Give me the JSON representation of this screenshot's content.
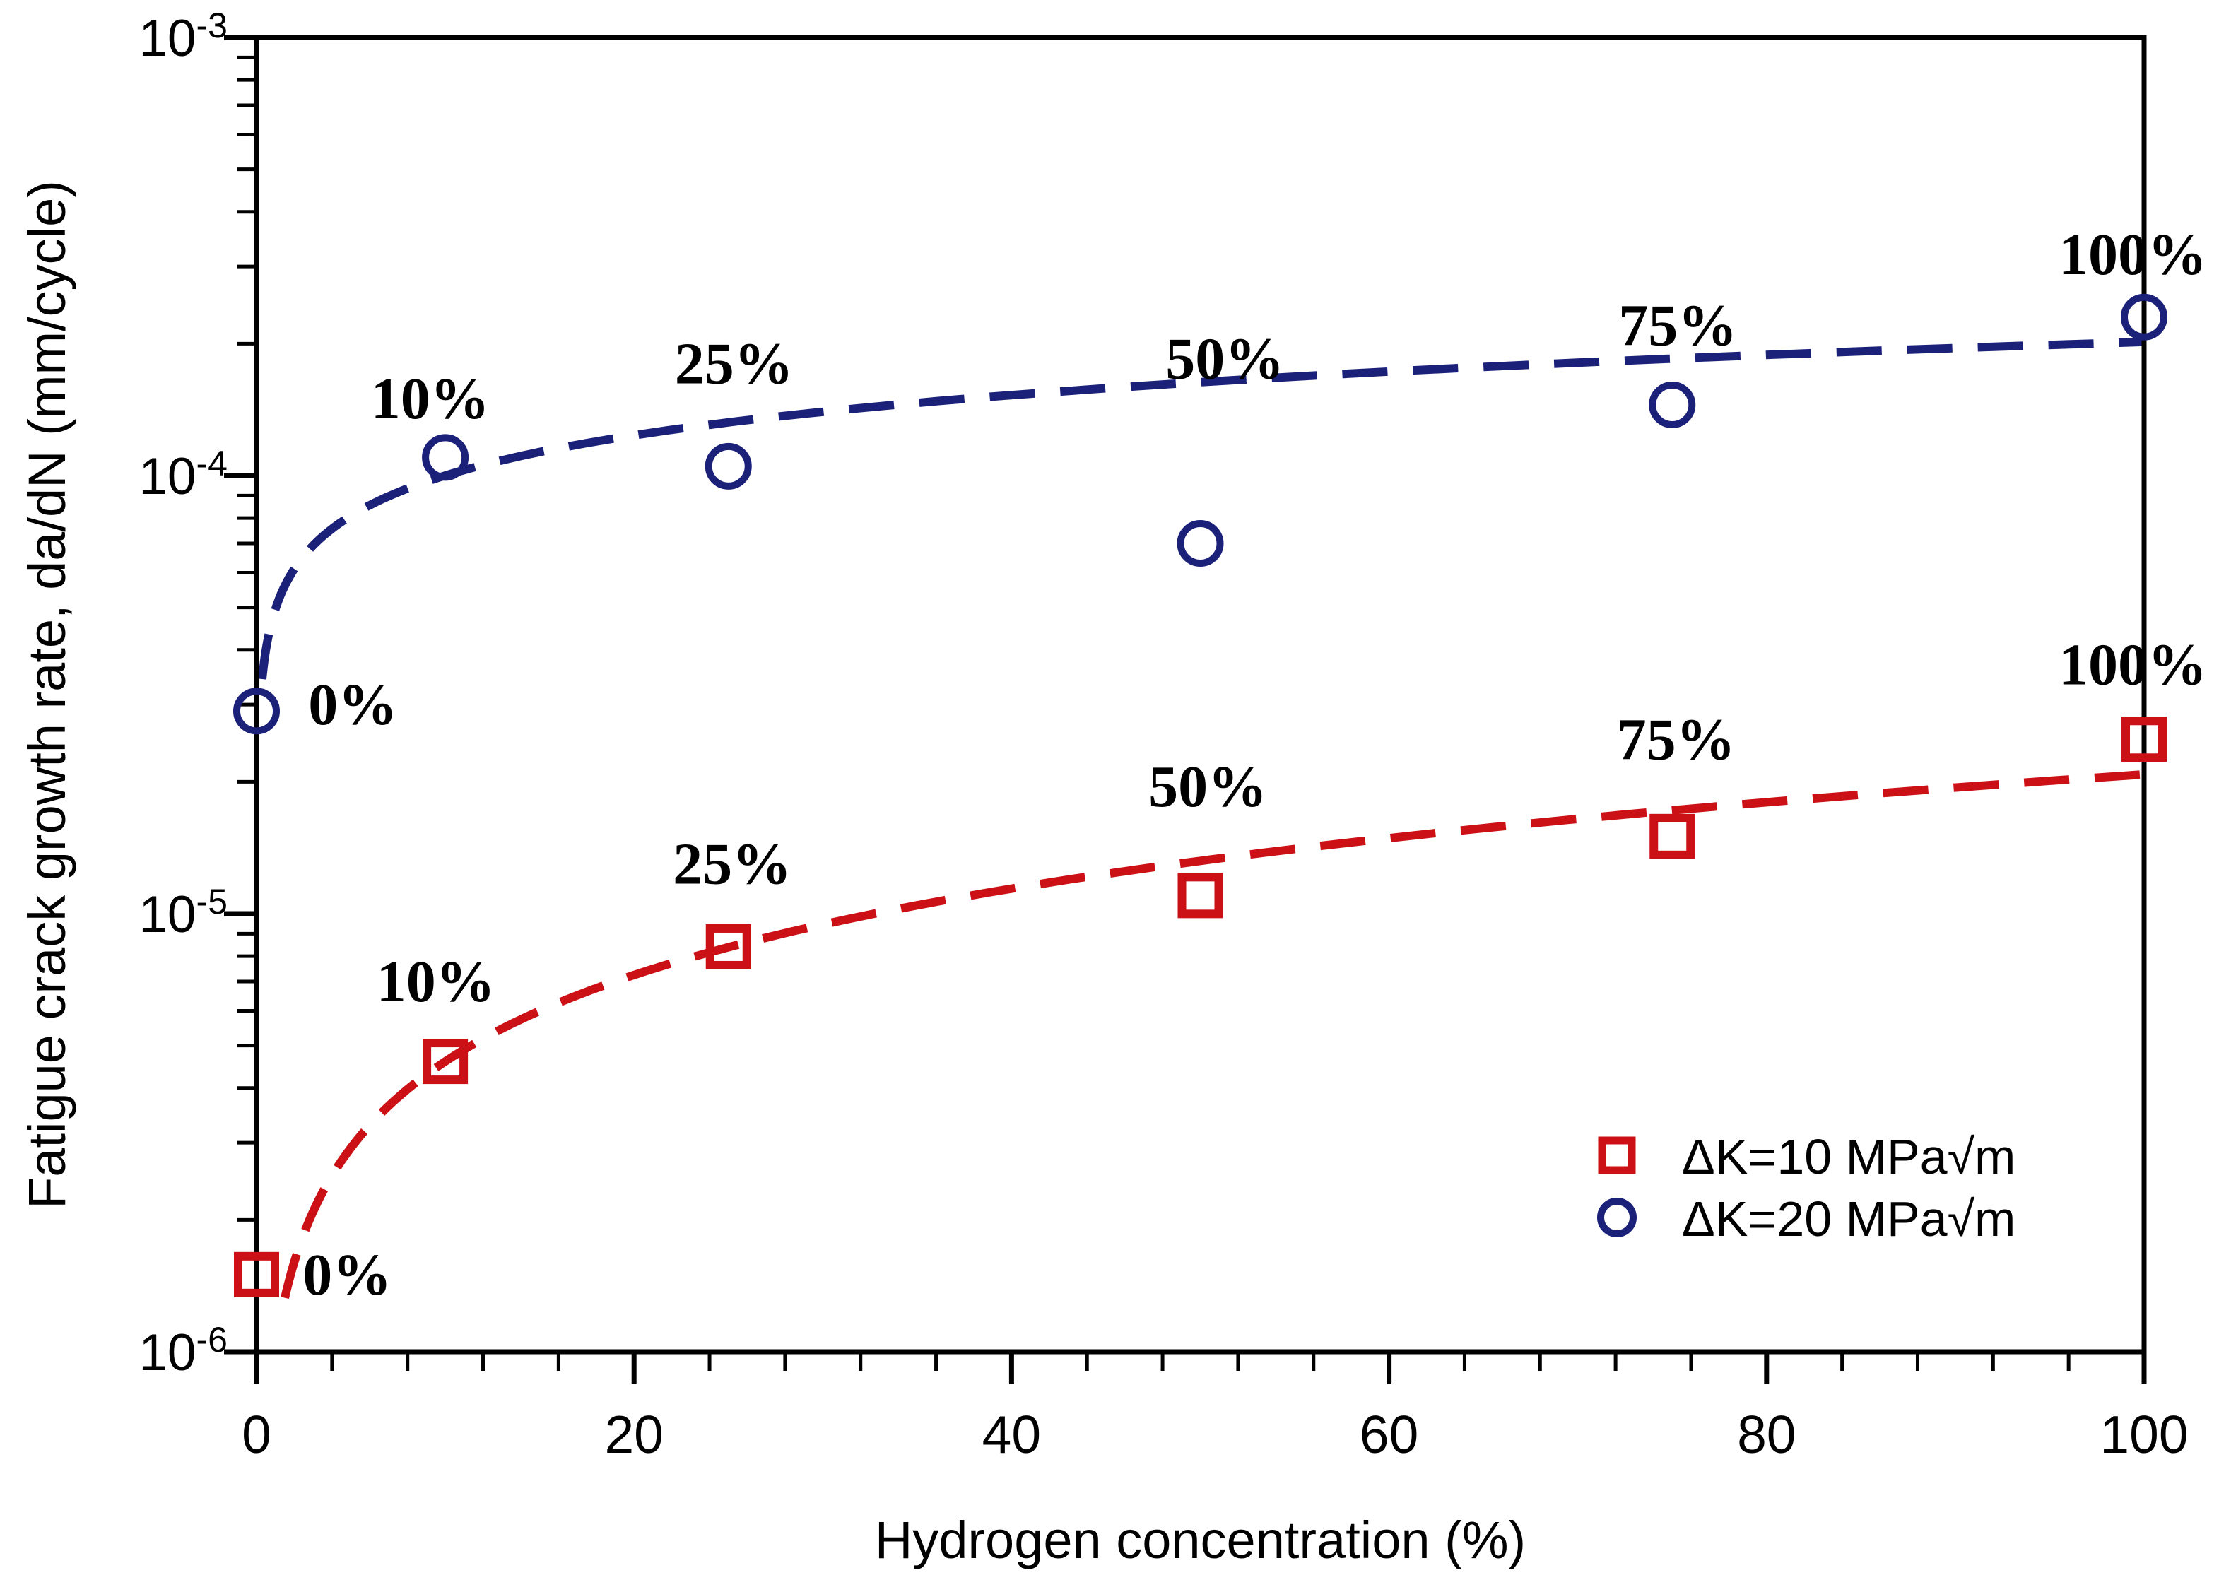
{
  "figure": {
    "background": "#ffffff",
    "axis_color": "#000000",
    "text_color": "#000000"
  },
  "chart_data": {
    "type": "scatter",
    "title": "",
    "xlabel": "Hydrogen concentration (%)",
    "ylabel": "Fatigue crack growth rate, da/dN (mm/cycle)",
    "x_range": [
      0,
      100
    ],
    "y_scale": "log",
    "y_range": [
      1e-06,
      0.001
    ],
    "x_ticks": [
      0,
      20,
      40,
      60,
      80,
      100
    ],
    "x_minor_step": 4,
    "y_tick_base": "10",
    "y_tick_exponents": [
      -3,
      -4,
      -5,
      -6
    ],
    "grid": "off",
    "legend_position": "lower right",
    "categories_pct": [
      0,
      10,
      25,
      50,
      75,
      100
    ],
    "series": [
      {
        "name": "ΔK=10 MPa√m",
        "marker": "square",
        "color": "#cb1016",
        "line_style": "dashed",
        "x": [
          0,
          10,
          25,
          50,
          75,
          100
        ],
        "values": [
          1.5e-06,
          4.6e-06,
          8.4e-06,
          1.1e-05,
          1.5e-05,
          2.5e-05
        ],
        "trend": {
          "type": "power",
          "a": 4.6e-06,
          "b": 0.655,
          "x_ref": 10,
          "x_start": 1.5,
          "x_end": 100
        },
        "labels": [
          {
            "text": "0%",
            "x": 4.8,
            "v": 1.5e-06
          },
          {
            "text": "10%",
            "x": 9.5,
            "v": 7e-06
          },
          {
            "text": "25%",
            "x": 25.2,
            "v": 1.3e-05
          },
          {
            "text": "50%",
            "x": 50.4,
            "v": 1.95e-05
          },
          {
            "text": "75%",
            "x": 75.2,
            "v": 2.5e-05
          },
          {
            "text": "100%",
            "x": 99.4,
            "v": 3.7e-05
          }
        ]
      },
      {
        "name": "ΔK=20 MPa√m",
        "marker": "circle",
        "color": "#1b2079",
        "line_style": "dashed",
        "x": [
          0,
          10,
          25,
          50,
          75,
          100
        ],
        "values": [
          2.9e-05,
          0.00011,
          0.000105,
          7e-05,
          0.000145,
          0.00023
        ],
        "trend": {
          "type": "power",
          "a": 0.0001,
          "b": 0.305,
          "x_ref": 10,
          "x_start": 0.3,
          "x_end": 100
        },
        "labels": [
          {
            "text": "0%",
            "x": 5.1,
            "v": 3e-05
          },
          {
            "text": "10%",
            "x": 9.2,
            "v": 0.00015
          },
          {
            "text": "25%",
            "x": 25.3,
            "v": 0.00018
          },
          {
            "text": "50%",
            "x": 51.3,
            "v": 0.000185
          },
          {
            "text": "75%",
            "x": 75.3,
            "v": 0.00022
          },
          {
            "text": "100%",
            "x": 99.4,
            "v": 0.00032
          }
        ]
      }
    ],
    "legend": {
      "items": [
        {
          "label": "ΔK=10 MPa√m",
          "marker": "square",
          "color": "#cb1016"
        },
        {
          "label": "ΔK=20 MPa√m",
          "marker": "circle",
          "color": "#1b2079"
        }
      ]
    }
  }
}
